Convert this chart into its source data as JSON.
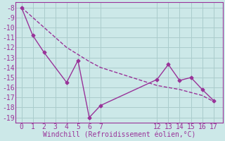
{
  "xlabel": "Windchill (Refroidissement éolien,°C)",
  "line1_x": [
    0,
    1,
    2,
    4,
    5,
    6,
    7,
    12,
    13,
    14,
    15,
    16,
    17
  ],
  "line1_y": [
    -8,
    -10.8,
    -12.5,
    -15.5,
    -13.3,
    -19.0,
    -17.8,
    -15.2,
    -13.7,
    -15.3,
    -15.0,
    -16.2,
    -17.3
  ],
  "line2_x": [
    0,
    1,
    2,
    4,
    5,
    6,
    7,
    12,
    13,
    14,
    15,
    16,
    17
  ],
  "line2_y": [
    -8,
    -9.0,
    -10.0,
    -12.0,
    -12.7,
    -13.4,
    -14.0,
    -15.8,
    -16.0,
    -16.2,
    -16.5,
    -16.8,
    -17.4
  ],
  "color": "#993399",
  "bg_color": "#cce8e8",
  "grid_color": "#aacccc",
  "ylim": [
    -19.5,
    -7.5
  ],
  "xlim": [
    -0.5,
    17.8
  ],
  "yticks": [
    -8,
    -9,
    -10,
    -11,
    -12,
    -13,
    -14,
    -15,
    -16,
    -17,
    -18,
    -19
  ],
  "xticks": [
    0,
    1,
    2,
    3,
    4,
    5,
    6,
    7,
    12,
    13,
    14,
    15,
    16,
    17
  ],
  "xlabel_fontsize": 7,
  "tick_fontsize": 7
}
